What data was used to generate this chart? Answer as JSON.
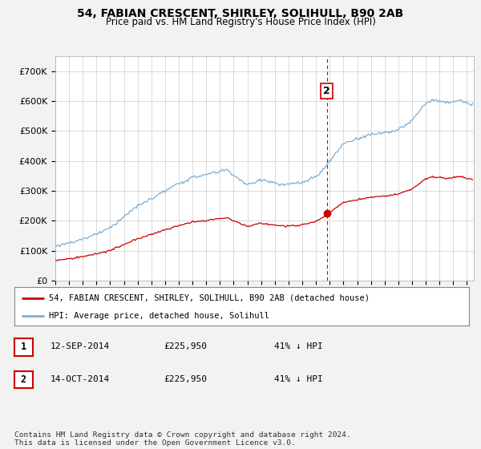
{
  "title": "54, FABIAN CRESCENT, SHIRLEY, SOLIHULL, B90 2AB",
  "subtitle": "Price paid vs. HM Land Registry's House Price Index (HPI)",
  "legend_line1": "54, FABIAN CRESCENT, SHIRLEY, SOLIHULL, B90 2AB (detached house)",
  "legend_line2": "HPI: Average price, detached house, Solihull",
  "table_rows": [
    {
      "num": "1",
      "date": "12-SEP-2014",
      "price": "£225,950",
      "hpi": "41% ↓ HPI"
    },
    {
      "num": "2",
      "date": "14-OCT-2014",
      "price": "£225,950",
      "hpi": "41% ↓ HPI"
    }
  ],
  "footer": "Contains HM Land Registry data © Crown copyright and database right 2024.\nThis data is licensed under the Open Government Licence v3.0.",
  "vline_x": 2014.8,
  "sale_dot_x": 2014.8,
  "sale_dot_y": 225950,
  "annotation_2": "2",
  "red_color": "#cc0000",
  "blue_color": "#7aaed6",
  "vline_color": "#cc0000",
  "background_color": "#f2f2f2",
  "plot_bg": "#ffffff",
  "ylim": [
    0,
    750000
  ],
  "xlim_start": 1995,
  "xlim_end": 2025.5
}
